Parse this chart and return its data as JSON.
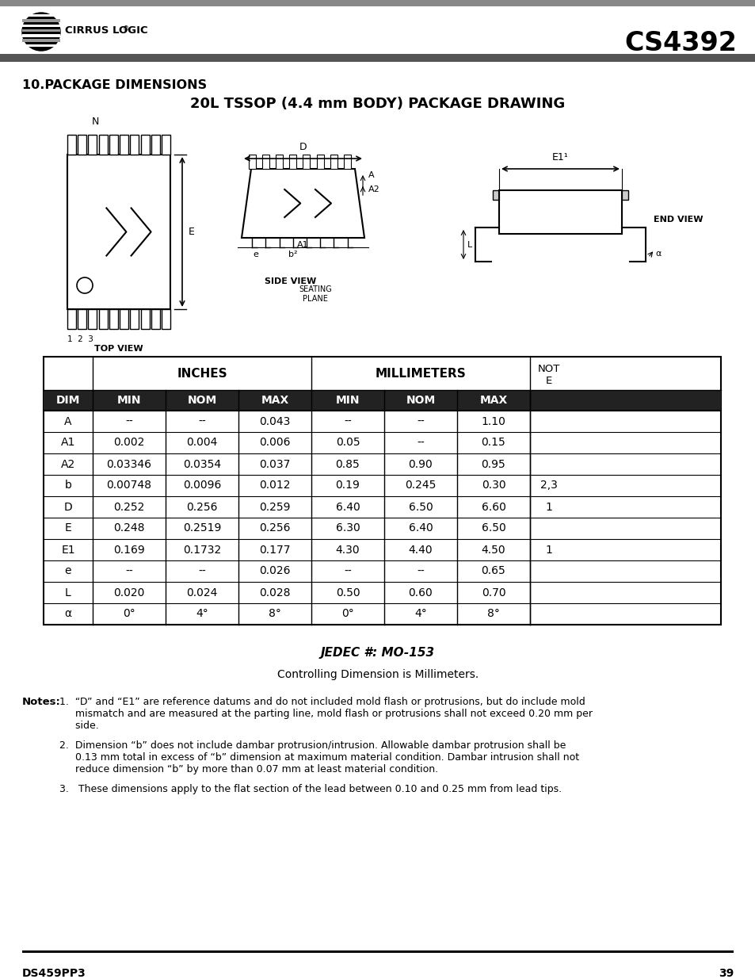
{
  "title_section": "10.PACKAGE DIMENSIONS",
  "title_main": "20L TSSOP (4.4 mm BODY) PACKAGE DRAWING",
  "chip_model": "CS4392",
  "doc_number": "DS459PP3",
  "page_number": "39",
  "jedec": "JEDEC #: MO-153",
  "controlling_dim": "Controlling Dimension is Millimeters.",
  "table_headers_row2": [
    "DIM",
    "MIN",
    "NOM",
    "MAX",
    "MIN",
    "NOM",
    "MAX",
    ""
  ],
  "table_data": [
    [
      "A",
      "--",
      "--",
      "0.043",
      "--",
      "--",
      "1.10",
      ""
    ],
    [
      "A1",
      "0.002",
      "0.004",
      "0.006",
      "0.05",
      "--",
      "0.15",
      ""
    ],
    [
      "A2",
      "0.03346",
      "0.0354",
      "0.037",
      "0.85",
      "0.90",
      "0.95",
      ""
    ],
    [
      "b",
      "0.00748",
      "0.0096",
      "0.012",
      "0.19",
      "0.245",
      "0.30",
      "2,3"
    ],
    [
      "D",
      "0.252",
      "0.256",
      "0.259",
      "6.40",
      "6.50",
      "6.60",
      "1"
    ],
    [
      "E",
      "0.248",
      "0.2519",
      "0.256",
      "6.30",
      "6.40",
      "6.50",
      ""
    ],
    [
      "E1",
      "0.169",
      "0.1732",
      "0.177",
      "4.30",
      "4.40",
      "4.50",
      "1"
    ],
    [
      "e",
      "--",
      "--",
      "0.026",
      "--",
      "--",
      "0.65",
      ""
    ],
    [
      "L",
      "0.020",
      "0.024",
      "0.028",
      "0.50",
      "0.60",
      "0.70",
      ""
    ],
    [
      "α",
      "0°",
      "4°",
      "8°",
      "0°",
      "4°",
      "8°",
      ""
    ]
  ],
  "bg_color": "#ffffff",
  "line_color": "#000000",
  "gray_bar_color": "#666666",
  "note1_line1": "1.  “D” and “E1” are reference datums and do not included mold flash or protrusions, but do include mold",
  "note1_line2": "     mismatch and are measured at the parting line, mold flash or protrusions shall not exceed 0.20 mm per",
  "note1_line3": "     side.",
  "note2_line1": "2.  Dimension “b” does not include dambar protrusion/intrusion. Allowable dambar protrusion shall be",
  "note2_line2": "     0.13 mm total in excess of “b” dimension at maximum material condition. Dambar intrusion shall not",
  "note2_line3": "     reduce dimension “b” by more than 0.07 mm at least material condition.",
  "note3_line1": "3.   These dimensions apply to the flat section of the lead between 0.10 and 0.25 mm from lead tips."
}
